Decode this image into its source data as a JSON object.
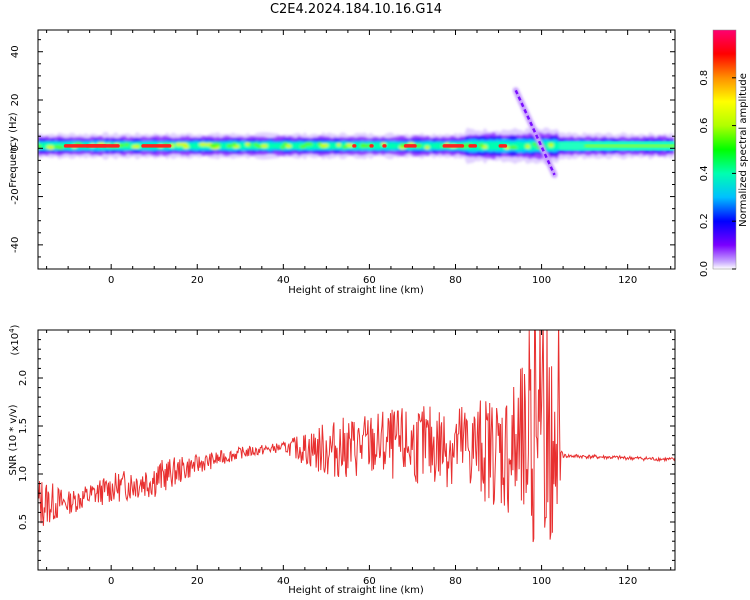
{
  "title": "C2E4.2024.184.10.16.G14",
  "chart_data": [
    {
      "type": "heatmap",
      "xlabel": "Height of straight line (km)",
      "ylabel": "Frequency (Hz)",
      "xlim": [
        -17,
        131
      ],
      "ylim": [
        -50,
        49
      ],
      "xticks": [
        0,
        20,
        40,
        60,
        80,
        100,
        120
      ],
      "yticks": [
        -40,
        -20,
        0,
        20,
        40
      ],
      "colorbar": {
        "label": "Normalized spectral amplitude",
        "range": [
          0,
          1
        ],
        "ticks": [
          "0.0",
          "0.2",
          "0.4",
          "0.6",
          "0.8"
        ]
      },
      "band": {
        "center_hz": 1,
        "features": [
          {
            "x_km": 85,
            "y_hz": 4,
            "note": "widening"
          },
          {
            "x_km": 94,
            "y_hz": 24,
            "x2_km": 103,
            "y2_hz": -11,
            "note": "diagonal streak"
          }
        ]
      }
    },
    {
      "type": "line",
      "xlabel": "Height of straight line (km)",
      "ylabel": "SNR (10 * v/v)",
      "multiplier_label": "(x10",
      "multiplier_exp": "4",
      "multiplier_close": ")",
      "xlim": [
        -17,
        131
      ],
      "ylim": [
        0,
        2.5
      ],
      "xticks": [
        0,
        20,
        40,
        60,
        80,
        100,
        120
      ],
      "yticks": [
        "0.5",
        "1.0",
        "1.5",
        "2.0"
      ],
      "color": "#e83030",
      "envelope": [
        {
          "x": -17,
          "center": 0.7,
          "amp": 0.3
        },
        {
          "x": -10,
          "center": 0.7,
          "amp": 0.12
        },
        {
          "x": 0,
          "center": 0.85,
          "amp": 0.15
        },
        {
          "x": 10,
          "center": 0.95,
          "amp": 0.2
        },
        {
          "x": 20,
          "center": 1.1,
          "amp": 0.1
        },
        {
          "x": 30,
          "center": 1.22,
          "amp": 0.06
        },
        {
          "x": 40,
          "center": 1.28,
          "amp": 0.05
        },
        {
          "x": 50,
          "center": 1.25,
          "amp": 0.3
        },
        {
          "x": 60,
          "center": 1.3,
          "amp": 0.35
        },
        {
          "x": 70,
          "center": 1.3,
          "amp": 0.4
        },
        {
          "x": 80,
          "center": 1.3,
          "amp": 0.45
        },
        {
          "x": 90,
          "center": 1.25,
          "amp": 0.6
        },
        {
          "x": 97,
          "center": 1.2,
          "amp": 1.0
        },
        {
          "x": 103,
          "center": 1.2,
          "amp": 1.1
        },
        {
          "x": 105,
          "center": 1.19,
          "amp": 0.02
        },
        {
          "x": 131,
          "center": 1.15,
          "amp": 0.02
        }
      ]
    }
  ]
}
